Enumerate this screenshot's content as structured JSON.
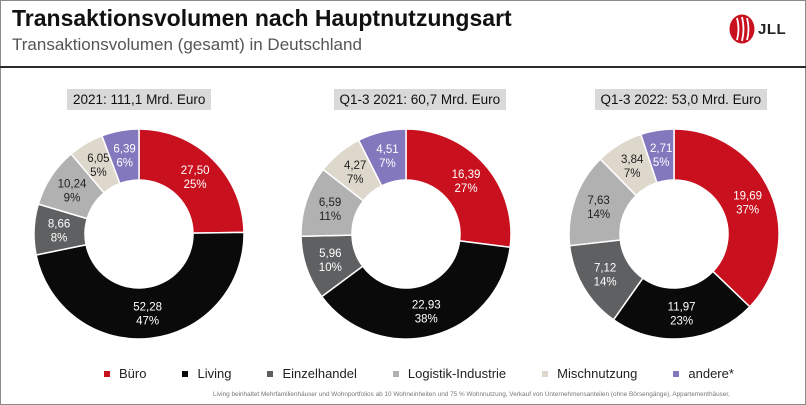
{
  "header": {
    "title": "Transaktionsvolumen nach Hauptnutzungsart",
    "subtitle": "Transaktionsvolumen (gesamt) in Deutschland",
    "logo_text": "JLL"
  },
  "colors": {
    "Büro": "#c8101e",
    "Living": "#0a0a0a",
    "Einzelhandel": "#5f6062",
    "Logistik-Industrie": "#b1b1b1",
    "Mischnutzung": "#ddd8cb",
    "andere*": "#8377bd"
  },
  "chart_data": [
    {
      "type": "pie",
      "title": "2021: 111,1 Mrd. Euro",
      "slices": [
        {
          "category": "Büro",
          "value": 27.5,
          "value_label": "27,50",
          "pct_label": "25%"
        },
        {
          "category": "Living",
          "value": 52.28,
          "value_label": "52,28",
          "pct_label": "47%"
        },
        {
          "category": "Einzelhandel",
          "value": 8.66,
          "value_label": "8,66",
          "pct_label": "8%"
        },
        {
          "category": "Logistik-Industrie",
          "value": 10.24,
          "value_label": "10,24",
          "pct_label": "9%"
        },
        {
          "category": "Mischnutzung",
          "value": 6.05,
          "value_label": "6,05",
          "pct_label": "5%"
        },
        {
          "category": "andere*",
          "value": 6.39,
          "value_label": "6,39",
          "pct_label": "6%"
        }
      ]
    },
    {
      "type": "pie",
      "title": "Q1-3 2021: 60,7 Mrd. Euro",
      "slices": [
        {
          "category": "Büro",
          "value": 16.39,
          "value_label": "16,39",
          "pct_label": "27%"
        },
        {
          "category": "Living",
          "value": 22.93,
          "value_label": "22,93",
          "pct_label": "38%"
        },
        {
          "category": "Einzelhandel",
          "value": 5.96,
          "value_label": "5,96",
          "pct_label": "10%"
        },
        {
          "category": "Logistik-Industrie",
          "value": 6.59,
          "value_label": "6,59",
          "pct_label": "11%"
        },
        {
          "category": "Mischnutzung",
          "value": 4.27,
          "value_label": "4,27",
          "pct_label": "7%"
        },
        {
          "category": "andere*",
          "value": 4.51,
          "value_label": "4,51",
          "pct_label": "7%"
        }
      ]
    },
    {
      "type": "pie",
      "title": "Q1-3 2022: 53,0 Mrd. Euro",
      "slices": [
        {
          "category": "Büro",
          "value": 19.69,
          "value_label": "19,69",
          "pct_label": "37%"
        },
        {
          "category": "Living",
          "value": 11.97,
          "value_label": "11,97",
          "pct_label": "23%"
        },
        {
          "category": "Einzelhandel",
          "value": 7.12,
          "value_label": "7,12",
          "pct_label": "14%"
        },
        {
          "category": "Logistik-Industrie",
          "value": 7.63,
          "value_label": "7,63",
          "pct_label": "14%"
        },
        {
          "category": "Mischnutzung",
          "value": 3.84,
          "value_label": "3,84",
          "pct_label": "7%"
        },
        {
          "category": "andere*",
          "value": 2.71,
          "value_label": "2,71",
          "pct_label": "5%"
        }
      ]
    }
  ],
  "legend": [
    "Büro",
    "Living",
    "Einzelhandel",
    "Logistik-Industrie",
    "Mischnutzung",
    "andere*"
  ],
  "footnote": "Living beinhaltet Mehrfamilienhäuser und Wohnportfolios ab 10 Wohneinheiten und 75 % Wohnnutzung, Verkauf von Unternehmensanteilen (ohne Börsengänge), Appartementhäuser,"
}
